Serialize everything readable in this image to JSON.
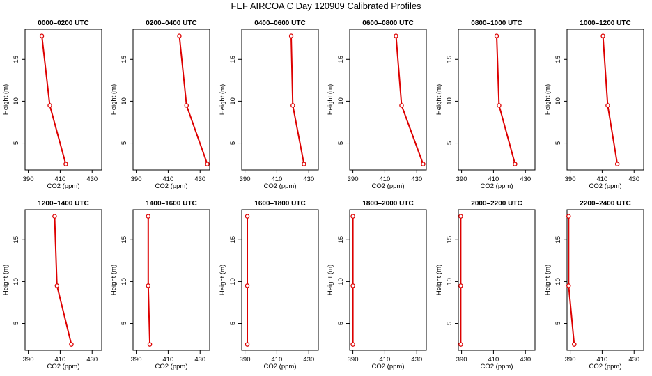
{
  "figure_title": "FEF AIRCOA C  Day 120909  Calibrated Profiles",
  "colors": {
    "series": "#dd0000",
    "axes": "#000000",
    "background": "#ffffff"
  },
  "chart_data": [
    {
      "type": "line",
      "title": "0000–0200 UTC",
      "xlabel": "CO2 (ppm)",
      "ylabel": "Height (m)",
      "xlim": [
        388,
        436
      ],
      "ylim": [
        1.8,
        18.6
      ],
      "xticks": [
        390,
        410,
        430
      ],
      "yticks": [
        5,
        10,
        15
      ],
      "series": [
        {
          "name": "profile",
          "x": [
            398.5,
            403.5,
            413.5
          ],
          "y": [
            17.8,
            9.5,
            2.5
          ]
        }
      ]
    },
    {
      "type": "line",
      "title": "0200–0400 UTC",
      "xlabel": "CO2 (ppm)",
      "ylabel": "Height (m)",
      "xlim": [
        388,
        436
      ],
      "ylim": [
        1.8,
        18.6
      ],
      "xticks": [
        390,
        410,
        430
      ],
      "yticks": [
        5,
        10,
        15
      ],
      "series": [
        {
          "name": "profile",
          "x": [
            417,
            421.5,
            434.5
          ],
          "y": [
            17.8,
            9.5,
            2.5
          ]
        }
      ]
    },
    {
      "type": "line",
      "title": "0400–0600 UTC",
      "xlabel": "CO2 (ppm)",
      "ylabel": "Height (m)",
      "xlim": [
        388,
        436
      ],
      "ylim": [
        1.8,
        18.6
      ],
      "xticks": [
        390,
        410,
        430
      ],
      "yticks": [
        5,
        10,
        15
      ],
      "series": [
        {
          "name": "profile",
          "x": [
            419,
            420,
            427
          ],
          "y": [
            17.8,
            9.5,
            2.5
          ]
        }
      ]
    },
    {
      "type": "line",
      "title": "0600–0800 UTC",
      "xlabel": "CO2 (ppm)",
      "ylabel": "Height (m)",
      "xlim": [
        388,
        436
      ],
      "ylim": [
        1.8,
        18.6
      ],
      "xticks": [
        390,
        410,
        430
      ],
      "yticks": [
        5,
        10,
        15
      ],
      "series": [
        {
          "name": "profile",
          "x": [
            417,
            420.5,
            434
          ],
          "y": [
            17.8,
            9.5,
            2.5
          ]
        }
      ]
    },
    {
      "type": "line",
      "title": "0800–1000 UTC",
      "xlabel": "CO2 (ppm)",
      "ylabel": "Height (m)",
      "xlim": [
        388,
        436
      ],
      "ylim": [
        1.8,
        18.6
      ],
      "xticks": [
        390,
        410,
        430
      ],
      "yticks": [
        5,
        10,
        15
      ],
      "series": [
        {
          "name": "profile",
          "x": [
            412,
            413.5,
            423.5
          ],
          "y": [
            17.8,
            9.5,
            2.5
          ]
        }
      ]
    },
    {
      "type": "line",
      "title": "1000–1200 UTC",
      "xlabel": "CO2 (ppm)",
      "ylabel": "Height (m)",
      "xlim": [
        388,
        436
      ],
      "ylim": [
        1.8,
        18.6
      ],
      "xticks": [
        390,
        410,
        430
      ],
      "yticks": [
        5,
        10,
        15
      ],
      "series": [
        {
          "name": "profile",
          "x": [
            410.5,
            413.5,
            419.5
          ],
          "y": [
            17.8,
            9.5,
            2.5
          ]
        }
      ]
    },
    {
      "type": "line",
      "title": "1200–1400 UTC",
      "xlabel": "CO2 (ppm)",
      "ylabel": "Height (m)",
      "xlim": [
        388,
        436
      ],
      "ylim": [
        1.8,
        18.6
      ],
      "xticks": [
        390,
        410,
        430
      ],
      "yticks": [
        5,
        10,
        15
      ],
      "series": [
        {
          "name": "profile",
          "x": [
            406.5,
            408,
            417
          ],
          "y": [
            17.8,
            9.5,
            2.5
          ]
        }
      ]
    },
    {
      "type": "line",
      "title": "1400–1600 UTC",
      "xlabel": "CO2 (ppm)",
      "ylabel": "Height (m)",
      "xlim": [
        388,
        436
      ],
      "ylim": [
        1.8,
        18.6
      ],
      "xticks": [
        390,
        410,
        430
      ],
      "yticks": [
        5,
        10,
        15
      ],
      "series": [
        {
          "name": "profile",
          "x": [
            397.5,
            397.5,
            398.5
          ],
          "y": [
            17.8,
            9.5,
            2.5
          ]
        }
      ]
    },
    {
      "type": "line",
      "title": "1600–1800 UTC",
      "xlabel": "CO2 (ppm)",
      "ylabel": "Height (m)",
      "xlim": [
        388,
        436
      ],
      "ylim": [
        1.8,
        18.6
      ],
      "xticks": [
        390,
        410,
        430
      ],
      "yticks": [
        5,
        10,
        15
      ],
      "series": [
        {
          "name": "profile",
          "x": [
            391.5,
            391.5,
            391.5
          ],
          "y": [
            17.8,
            9.5,
            2.5
          ]
        }
      ]
    },
    {
      "type": "line",
      "title": "1800–2000 UTC",
      "xlabel": "CO2 (ppm)",
      "ylabel": "Height (m)",
      "xlim": [
        388,
        436
      ],
      "ylim": [
        1.8,
        18.6
      ],
      "xticks": [
        390,
        410,
        430
      ],
      "yticks": [
        5,
        10,
        15
      ],
      "series": [
        {
          "name": "profile",
          "x": [
            390,
            390,
            390
          ],
          "y": [
            17.8,
            9.5,
            2.5
          ]
        }
      ]
    },
    {
      "type": "line",
      "title": "2000–2200 UTC",
      "xlabel": "CO2 (ppm)",
      "ylabel": "Height (m)",
      "xlim": [
        388,
        436
      ],
      "ylim": [
        1.8,
        18.6
      ],
      "xticks": [
        390,
        410,
        430
      ],
      "yticks": [
        5,
        10,
        15
      ],
      "series": [
        {
          "name": "profile",
          "x": [
            389.5,
            389.5,
            389.5
          ],
          "y": [
            17.8,
            9.5,
            2.5
          ]
        }
      ]
    },
    {
      "type": "line",
      "title": "2200–2400 UTC",
      "xlabel": "CO2 (ppm)",
      "ylabel": "Height (m)",
      "xlim": [
        388,
        436
      ],
      "ylim": [
        1.8,
        18.6
      ],
      "xticks": [
        390,
        410,
        430
      ],
      "yticks": [
        5,
        10,
        15
      ],
      "series": [
        {
          "name": "profile",
          "x": [
            389,
            389,
            392.5
          ],
          "y": [
            17.8,
            9.5,
            2.5
          ]
        }
      ]
    }
  ]
}
